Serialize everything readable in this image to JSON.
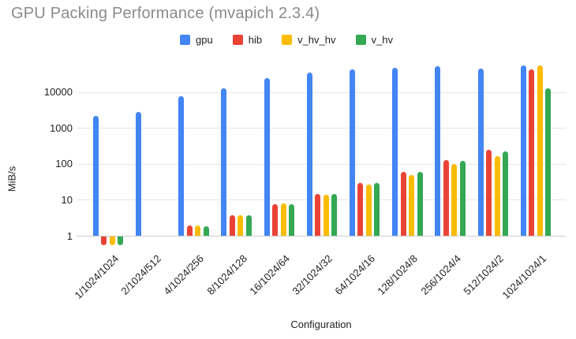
{
  "chart_data": {
    "type": "bar",
    "title": "GPU Packing Performance (mvapich 2.3.4)",
    "xlabel": "Configuration",
    "ylabel": "MiB/s",
    "y_scale": "log",
    "y_ticks": [
      1,
      10,
      100,
      1000,
      10000
    ],
    "ylim": [
      0.5,
      60000
    ],
    "grid": true,
    "legend_position": "top",
    "baseline_value": 1,
    "categories": [
      "1/1024/1024",
      "2/1024/512",
      "4/1024/256",
      "8/1024/128",
      "16/1024/64",
      "32/1024/32",
      "64/1024/16",
      "128/1024/8",
      "256/1024/4",
      "512/1024/2",
      "1024/1024/1"
    ],
    "series": [
      {
        "name": "gpu",
        "color": "#4285F4",
        "values": [
          2200,
          2800,
          8000,
          13000,
          25000,
          36000,
          44000,
          48000,
          52000,
          46000,
          56000
        ]
      },
      {
        "name": "hib",
        "color": "#EA4335",
        "values": [
          0.55,
          1,
          2,
          3.8,
          7.8,
          15,
          30,
          62,
          128,
          250,
          43000
        ]
      },
      {
        "name": "v_hv_hv",
        "color": "#FBBC04",
        "values": [
          0.55,
          1,
          2,
          3.9,
          8,
          14.5,
          28,
          51,
          103,
          168,
          55000
        ]
      },
      {
        "name": "v_hv",
        "color": "#34A853",
        "values": [
          0.55,
          1,
          1.9,
          3.8,
          7.8,
          15,
          30,
          61,
          122,
          228,
          13000
        ]
      }
    ]
  }
}
